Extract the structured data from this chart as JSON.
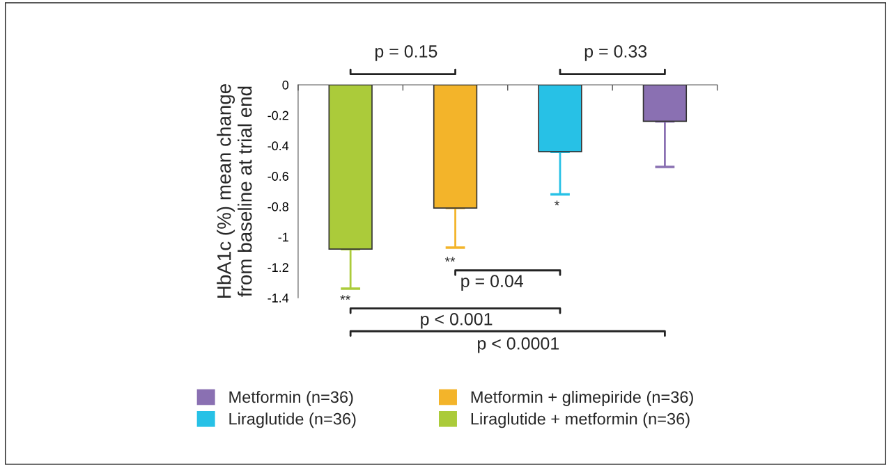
{
  "chart_data": {
    "type": "bar",
    "ylabel": "HbA1c (%) mean change\nfrom baseline at trial end",
    "categories": [
      null,
      null,
      null,
      null
    ],
    "series": [
      {
        "name": "Metformin (n=36)",
        "color": "#8a70b2",
        "values": [
          null,
          null,
          null,
          -0.24
        ],
        "errors": [
          null,
          null,
          null,
          [
            -0.54,
            -0.24
          ]
        ]
      },
      {
        "name": "Liraglutide (n=36)",
        "color": "#27c1e6",
        "values": [
          null,
          null,
          -0.44,
          null
        ],
        "errors": [
          null,
          null,
          [
            -0.72,
            -0.44
          ],
          null
        ]
      },
      {
        "name": "Metformin + glimepiride (n=36)",
        "color": "#f3b42a",
        "values": [
          null,
          -0.81,
          null,
          null
        ],
        "errors": [
          null,
          [
            -1.07,
            -0.81
          ],
          null,
          null
        ]
      },
      {
        "name": "Liraglutide + metformin (n=36)",
        "color": "#abcb3a",
        "values": [
          -1.08,
          null,
          null,
          null
        ],
        "errors": [
          [
            -1.34,
            -1.08
          ],
          null,
          null,
          null
        ]
      }
    ],
    "ylim": [
      -1.4,
      0
    ],
    "yticks": [
      0,
      -0.2,
      -0.4,
      -0.6,
      -0.8,
      -1,
      -1.2,
      -1.4
    ],
    "annotations": [
      "p = 0.15",
      "p = 0.33",
      "p = 0.04",
      "p < 0.001",
      "p < 0.0001",
      "**",
      "**",
      "*"
    ],
    "tick_labels": "y",
    "legend": "bottom",
    "grid": false
  }
}
